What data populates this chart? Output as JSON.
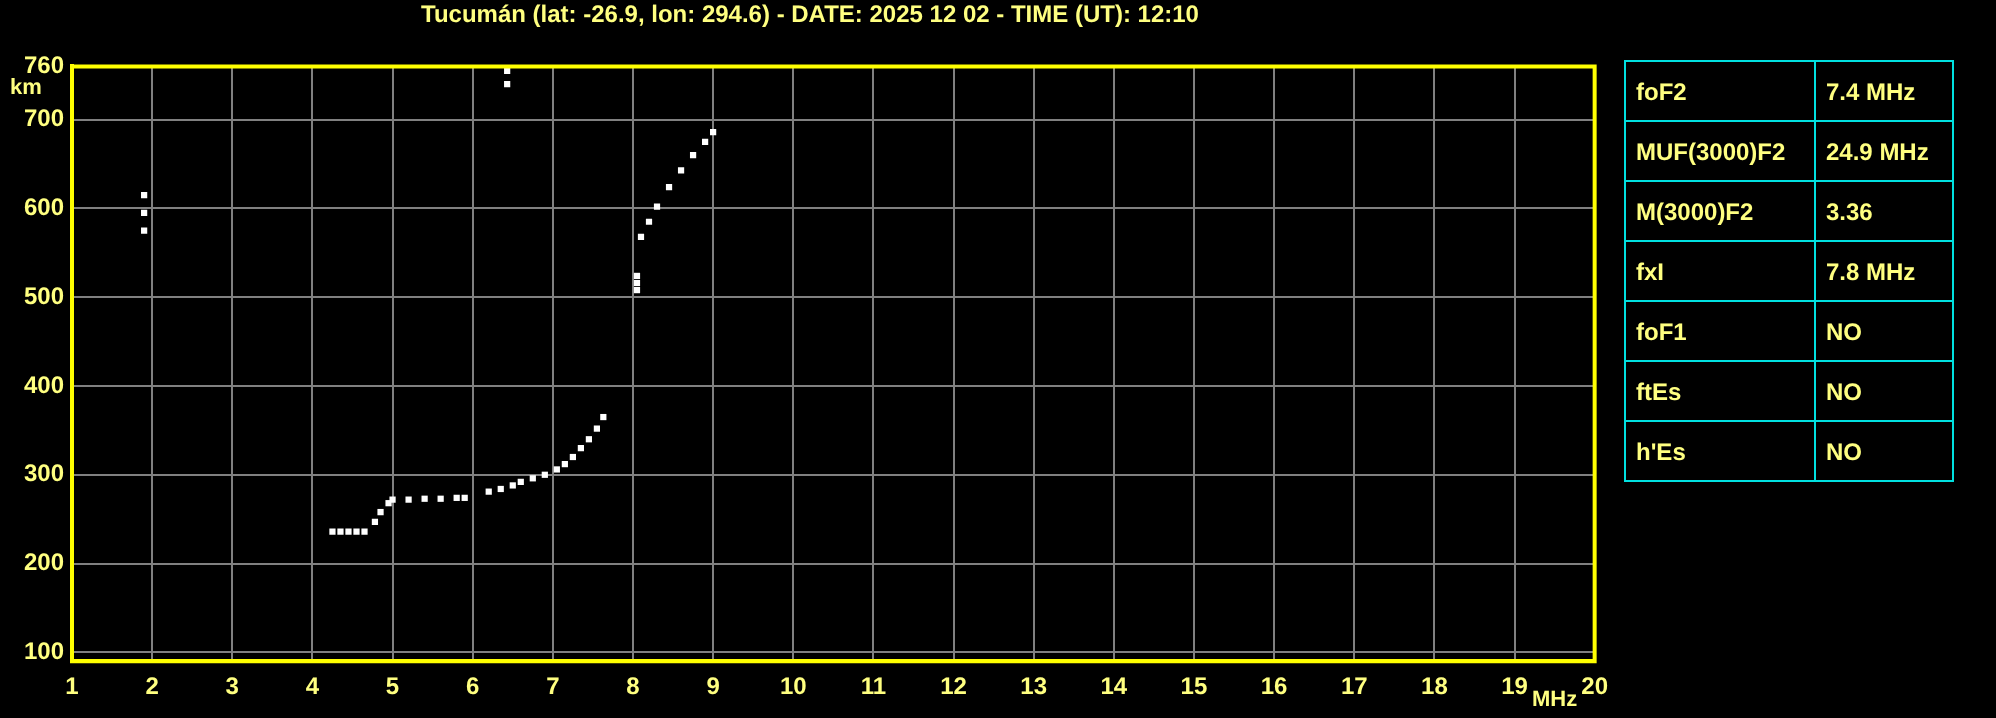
{
  "chart_data": [
    {
      "type": "scatter",
      "title": "Tucumán (lat: -26.9, lon: 294.6) - DATE: 2025 12 02 - TIME (UT): 12:10",
      "xlabel": "MHz",
      "ylabel": "km",
      "xlim": [
        1,
        20
      ],
      "xticks": [
        1,
        2,
        3,
        4,
        5,
        6,
        7,
        8,
        9,
        10,
        11,
        12,
        13,
        14,
        15,
        16,
        17,
        18,
        19,
        20
      ],
      "ylim": [
        90,
        760
      ],
      "yticks": [
        100,
        200,
        300,
        400,
        500,
        600,
        700,
        760
      ],
      "grid": true,
      "marker": "square",
      "series": [
        {
          "color": "#ffffff",
          "x": [
            4.25,
            4.35,
            4.45,
            4.55,
            4.65,
            4.78,
            4.85,
            4.95,
            5.0,
            5.2,
            5.4,
            5.6,
            5.8,
            5.9,
            6.2,
            6.35,
            6.5,
            6.6,
            6.75,
            6.9,
            7.05,
            7.15,
            7.25,
            7.35,
            7.45,
            7.55,
            7.63,
            8.05,
            8.05,
            8.05,
            8.1,
            8.2,
            8.3,
            8.45,
            8.6,
            8.75,
            8.9,
            9.0,
            1.9,
            1.9,
            1.9,
            6.43,
            6.43
          ],
          "values": [
            236,
            236,
            236,
            236,
            236,
            247,
            258,
            268,
            272,
            272,
            273,
            273,
            274,
            274,
            281,
            284,
            288,
            292,
            296,
            300,
            306,
            312,
            320,
            330,
            340,
            352,
            365,
            508,
            516,
            524,
            568,
            585,
            602,
            624,
            643,
            660,
            675,
            686,
            575,
            595,
            615,
            740,
            755
          ]
        }
      ]
    },
    {
      "type": "other",
      "annotations": [
        "foF2",
        "7.4 MHz",
        "MUF(3000)F2",
        "24.9 MHz",
        "M(3000)F2",
        "3.36",
        "fxI",
        "7.8 MHz",
        "foF1",
        "NO",
        "ftEs",
        "NO",
        "h'Es",
        "NO"
      ]
    }
  ]
}
